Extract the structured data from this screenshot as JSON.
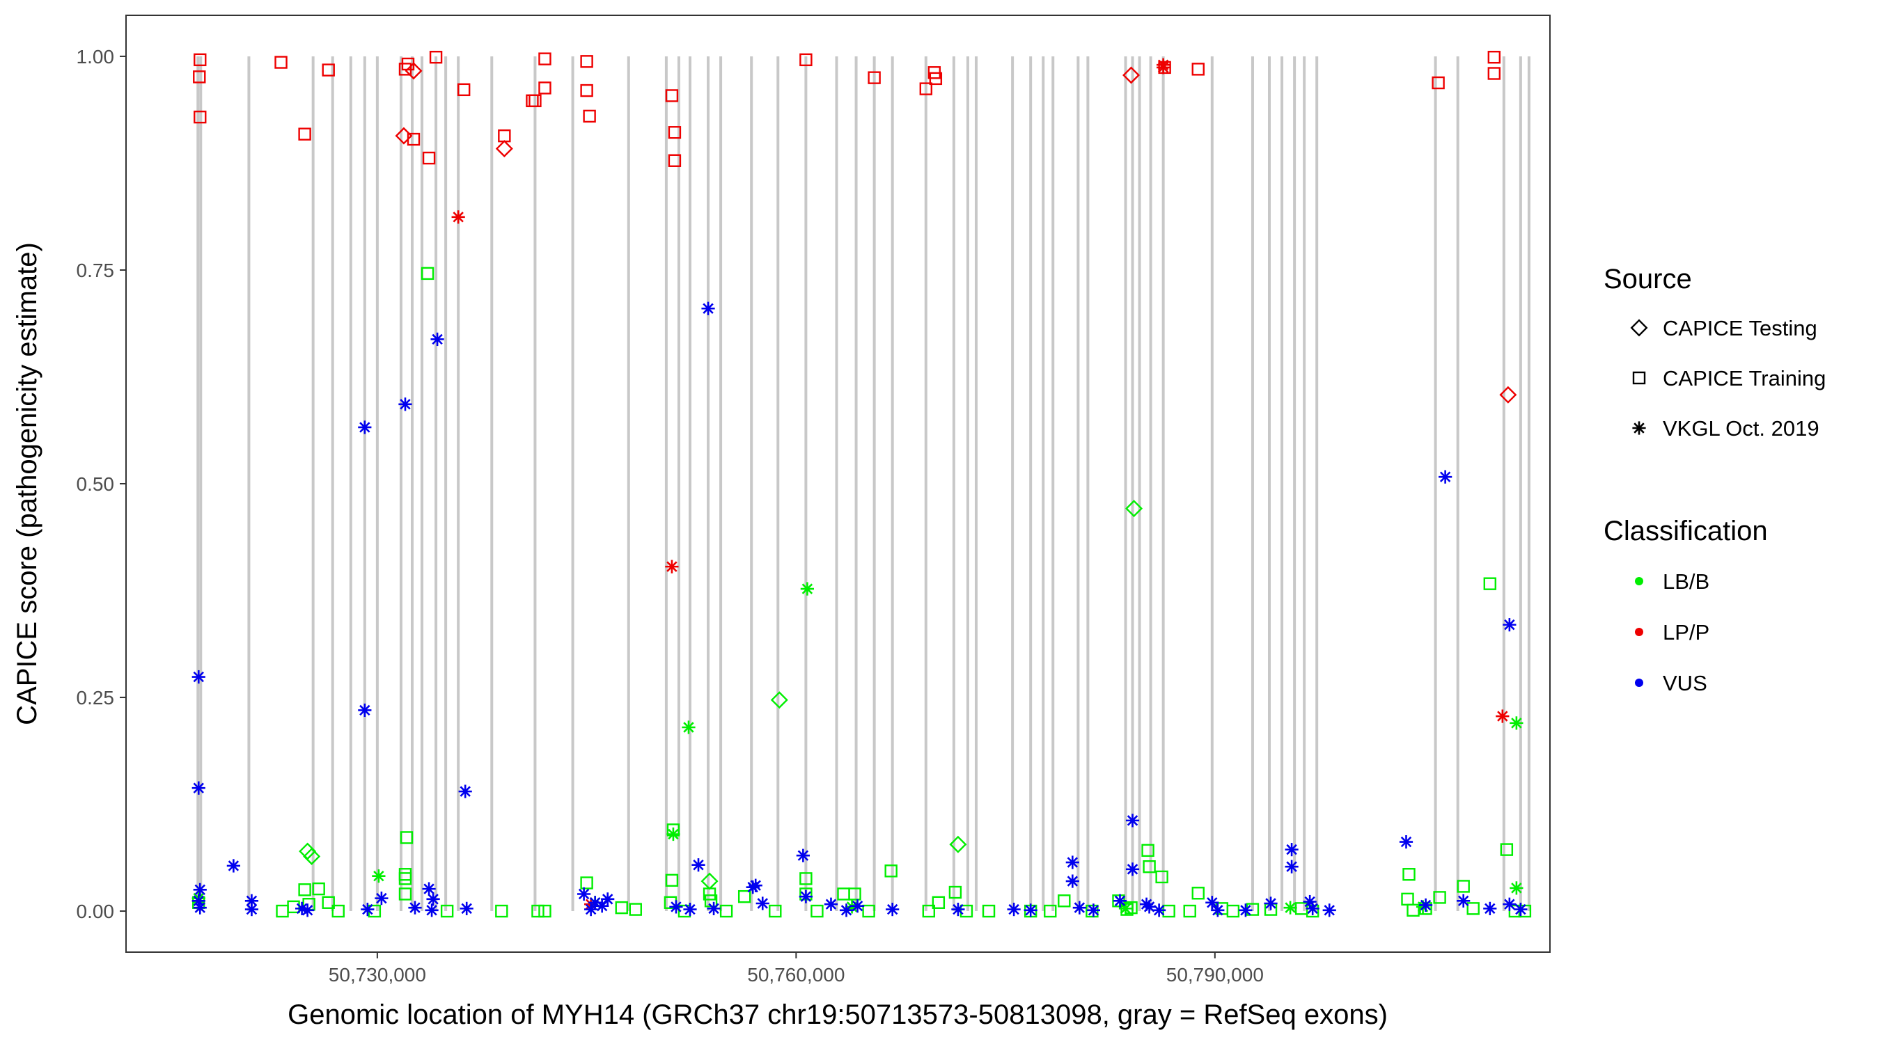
{
  "chart_data": {
    "type": "scatter",
    "xlabel": "Genomic location of MYH14 (GRCh37 chr19:50713573-50813098, gray = RefSeq exons)",
    "ylabel": "CAPICE score (pathogenicity estimate)",
    "xlim": [
      50712000,
      50814000
    ],
    "ylim": [
      -0.048,
      1.048
    ],
    "x_ticks": [
      {
        "value": 50730000,
        "label": "50,730,000"
      },
      {
        "value": 50760000,
        "label": "50,760,000"
      },
      {
        "value": 50790000,
        "label": "50,790,000"
      }
    ],
    "y_ticks": [
      {
        "value": 0.0,
        "label": "0.00"
      },
      {
        "value": 0.25,
        "label": "0.25"
      },
      {
        "value": 0.5,
        "label": "0.50"
      },
      {
        "value": 0.75,
        "label": "0.75"
      },
      {
        "value": 1.0,
        "label": "1.00"
      }
    ],
    "exon_positions": [
      50717150,
      50717350,
      50720800,
      50725400,
      50726800,
      50728100,
      50729100,
      50730000,
      50731700,
      50732500,
      50733200,
      50734200,
      50734900,
      50735800,
      50738200,
      50741300,
      50744000,
      50748000,
      50750700,
      50751600,
      50752400,
      50753700,
      50754600,
      50756800,
      50758700,
      50760700,
      50762900,
      50764300,
      50765600,
      50766900,
      50769300,
      50771300,
      50772300,
      50772900,
      50775500,
      50776800,
      50777700,
      50778400,
      50780200,
      50780900,
      50783600,
      50784100,
      50784600,
      50785400,
      50786300,
      50789800,
      50792700,
      50793900,
      50794800,
      50795700,
      50796400,
      50797300,
      50805800,
      50807400,
      50810700,
      50811900,
      50812500
    ],
    "legend": {
      "source_title": "Source",
      "source_items": [
        {
          "label": "CAPICE Testing",
          "shape": "diamond"
        },
        {
          "label": "CAPICE Training",
          "shape": "square"
        },
        {
          "label": "VKGL Oct. 2019",
          "shape": "asterisk"
        }
      ],
      "class_title": "Classification",
      "class_items": [
        {
          "label": "LB/B",
          "color": "#00ee00"
        },
        {
          "label": "LP/P",
          "color": "#ee0000"
        },
        {
          "label": "VUS",
          "color": "#0000ee"
        }
      ]
    },
    "colors": {
      "LB/B": "#00ee00",
      "LP/P": "#ee0000",
      "VUS": "#0000ee",
      "exon": "#c8c8c8"
    },
    "series": [
      {
        "name": "LP/P CAPICE Training",
        "classification": "LP/P",
        "source": "CAPICE Training",
        "points": [
          [
            50717300,
            0.996
          ],
          [
            50717250,
            0.976
          ],
          [
            50717300,
            0.929
          ],
          [
            50723100,
            0.993
          ],
          [
            50724800,
            0.909
          ],
          [
            50726500,
            0.984
          ],
          [
            50732000,
            0.985
          ],
          [
            50732200,
            0.991
          ],
          [
            50732600,
            0.903
          ],
          [
            50733700,
            0.881
          ],
          [
            50734200,
            0.999
          ],
          [
            50736200,
            0.961
          ],
          [
            50739100,
            0.907
          ],
          [
            50741100,
            0.948
          ],
          [
            50741300,
            0.948
          ],
          [
            50742000,
            0.997
          ],
          [
            50742000,
            0.963
          ],
          [
            50745000,
            0.994
          ],
          [
            50745000,
            0.96
          ],
          [
            50745200,
            0.93
          ],
          [
            50751100,
            0.954
          ],
          [
            50751300,
            0.911
          ],
          [
            50751300,
            0.878
          ],
          [
            50760700,
            0.996
          ],
          [
            50765600,
            0.975
          ],
          [
            50769300,
            0.962
          ],
          [
            50769900,
            0.981
          ],
          [
            50770000,
            0.974
          ],
          [
            50786400,
            0.987
          ],
          [
            50788800,
            0.985
          ],
          [
            50806000,
            0.969
          ],
          [
            50810000,
            0.999
          ],
          [
            50810000,
            0.98
          ]
        ]
      },
      {
        "name": "LP/P CAPICE Testing",
        "classification": "LP/P",
        "source": "CAPICE Testing",
        "points": [
          [
            50731900,
            0.907
          ],
          [
            50732600,
            0.983
          ],
          [
            50739100,
            0.892
          ],
          [
            50784000,
            0.978
          ],
          [
            50811000,
            0.604
          ]
        ]
      },
      {
        "name": "LP/P VKGL Oct. 2019",
        "classification": "LP/P",
        "source": "VKGL Oct. 2019",
        "points": [
          [
            50735800,
            0.812
          ],
          [
            50751100,
            0.403
          ],
          [
            50786300,
            0.99
          ],
          [
            50786300,
            0.987
          ],
          [
            50810600,
            0.228
          ],
          [
            50745300,
            0.008
          ]
        ]
      },
      {
        "name": "LB/B CAPICE Training",
        "classification": "LB/B",
        "source": "CAPICE Training",
        "points": [
          [
            50733600,
            0.746
          ],
          [
            50732100,
            0.086
          ],
          [
            50732000,
            0.043
          ],
          [
            50732000,
            0.038
          ],
          [
            50732000,
            0.02
          ],
          [
            50751200,
            0.095
          ],
          [
            50751100,
            0.036
          ],
          [
            50751000,
            0.01
          ],
          [
            50753800,
            0.02
          ],
          [
            50753900,
            0.012
          ],
          [
            50745000,
            0.033
          ],
          [
            50760700,
            0.038
          ],
          [
            50760700,
            0.02
          ],
          [
            50763400,
            0.02
          ],
          [
            50766800,
            0.047
          ],
          [
            50770200,
            0.01
          ],
          [
            50771400,
            0.022
          ],
          [
            50785200,
            0.071
          ],
          [
            50785300,
            0.052
          ],
          [
            50786200,
            0.04
          ],
          [
            50788800,
            0.021
          ],
          [
            50803900,
            0.043
          ],
          [
            50803800,
            0.014
          ],
          [
            50806100,
            0.016
          ],
          [
            50807800,
            0.029
          ],
          [
            50809700,
            0.383
          ],
          [
            50810900,
            0.072
          ],
          [
            50724800,
            0.025
          ],
          [
            50725800,
            0.026
          ],
          [
            50726500,
            0.01
          ],
          [
            50724000,
            0.005
          ],
          [
            50725100,
            0.008
          ],
          [
            50717200,
            0.01
          ],
          [
            50738900,
            0.0
          ],
          [
            50742000,
            0.0
          ],
          [
            50747500,
            0.004
          ],
          [
            50756300,
            0.017
          ],
          [
            50764200,
            0.02
          ],
          [
            50769500,
            0.0
          ],
          [
            50773800,
            0.0
          ],
          [
            50776800,
            0.0
          ],
          [
            50779200,
            0.012
          ],
          [
            50783100,
            0.012
          ],
          [
            50784000,
            0.004
          ],
          [
            50790500,
            0.003
          ],
          [
            50792700,
            0.002
          ],
          [
            50794000,
            0.002
          ],
          [
            50796200,
            0.003
          ],
          [
            50805100,
            0.003
          ],
          [
            50808500,
            0.003
          ],
          [
            50723200,
            0.0
          ],
          [
            50729800,
            0.0
          ],
          [
            50735000,
            0.0
          ],
          [
            50741500,
            0.0
          ],
          [
            50748500,
            0.002
          ],
          [
            50752000,
            0.0
          ],
          [
            50755000,
            0.0
          ],
          [
            50758500,
            0.0
          ],
          [
            50761500,
            0.0
          ],
          [
            50765200,
            0.0
          ],
          [
            50772200,
            0.0
          ],
          [
            50778200,
            0.0
          ],
          [
            50786700,
            0.0
          ],
          [
            50791300,
            0.0
          ],
          [
            50797000,
            0.0
          ],
          [
            50811500,
            0.0
          ],
          [
            50812200,
            0.0
          ],
          [
            50783700,
            0.002
          ],
          [
            50804200,
            0.001
          ],
          [
            50727200,
            0.0
          ],
          [
            50781200,
            0.0
          ],
          [
            50788200,
            0.0
          ]
        ]
      },
      {
        "name": "LB/B CAPICE Testing",
        "classification": "LB/B",
        "source": "CAPICE Testing",
        "points": [
          [
            50725000,
            0.07
          ],
          [
            50725300,
            0.064
          ],
          [
            50753800,
            0.035
          ],
          [
            50758800,
            0.247
          ],
          [
            50771600,
            0.078
          ],
          [
            50784200,
            0.471
          ]
        ]
      },
      {
        "name": "LB/B VKGL Oct. 2019",
        "classification": "LB/B",
        "source": "VKGL Oct. 2019",
        "points": [
          [
            50730100,
            0.041
          ],
          [
            50751200,
            0.09
          ],
          [
            50752300,
            0.215
          ],
          [
            50760800,
            0.377
          ],
          [
            50811600,
            0.22
          ],
          [
            50811600,
            0.027
          ],
          [
            50717200,
            0.015
          ],
          [
            50745600,
            0.01
          ],
          [
            50764000,
            0.005
          ],
          [
            50783600,
            0.003
          ],
          [
            50795400,
            0.004
          ],
          [
            50804900,
            0.005
          ]
        ]
      },
      {
        "name": "VUS VKGL Oct. 2019",
        "classification": "VUS",
        "source": "VKGL Oct. 2019",
        "points": [
          [
            50717200,
            0.274
          ],
          [
            50717200,
            0.144
          ],
          [
            50717300,
            0.025
          ],
          [
            50717200,
            0.012
          ],
          [
            50717300,
            0.004
          ],
          [
            50719700,
            0.053
          ],
          [
            50721000,
            0.012
          ],
          [
            50721000,
            0.002
          ],
          [
            50724600,
            0.003
          ],
          [
            50725000,
            0.001
          ],
          [
            50729100,
            0.566
          ],
          [
            50729100,
            0.235
          ],
          [
            50729300,
            0.002
          ],
          [
            50730300,
            0.015
          ],
          [
            50732000,
            0.593
          ],
          [
            50732700,
            0.004
          ],
          [
            50733700,
            0.026
          ],
          [
            50734000,
            0.014
          ],
          [
            50734300,
            0.669
          ],
          [
            50736300,
            0.14
          ],
          [
            50736400,
            0.003
          ],
          [
            50744800,
            0.02
          ],
          [
            50745600,
            0.01
          ],
          [
            50746100,
            0.006
          ],
          [
            50746500,
            0.014
          ],
          [
            50751400,
            0.005
          ],
          [
            50753000,
            0.054
          ],
          [
            50753700,
            0.705
          ],
          [
            50754100,
            0.003
          ],
          [
            50756900,
            0.028
          ],
          [
            50757100,
            0.03
          ],
          [
            50757600,
            0.009
          ],
          [
            50760500,
            0.065
          ],
          [
            50760700,
            0.017
          ],
          [
            50762500,
            0.008
          ],
          [
            50764400,
            0.006
          ],
          [
            50766900,
            0.002
          ],
          [
            50771600,
            0.002
          ],
          [
            50775600,
            0.002
          ],
          [
            50776800,
            0.001
          ],
          [
            50779800,
            0.057
          ],
          [
            50779800,
            0.035
          ],
          [
            50780300,
            0.004
          ],
          [
            50781300,
            0.001
          ],
          [
            50783200,
            0.012
          ],
          [
            50784100,
            0.106
          ],
          [
            50784100,
            0.049
          ],
          [
            50785100,
            0.008
          ],
          [
            50785300,
            0.005
          ],
          [
            50789800,
            0.01
          ],
          [
            50790200,
            0.001
          ],
          [
            50794000,
            0.009
          ],
          [
            50795500,
            0.072
          ],
          [
            50795500,
            0.052
          ],
          [
            50796800,
            0.011
          ],
          [
            50797000,
            0.003
          ],
          [
            50803700,
            0.081
          ],
          [
            50805100,
            0.007
          ],
          [
            50806500,
            0.508
          ],
          [
            50807800,
            0.012
          ],
          [
            50809700,
            0.003
          ],
          [
            50811100,
            0.335
          ],
          [
            50811100,
            0.008
          ],
          [
            50811900,
            0.002
          ],
          [
            50733900,
            0.001
          ],
          [
            50745300,
            0.002
          ],
          [
            50752400,
            0.002
          ],
          [
            50763600,
            0.001
          ],
          [
            50786000,
            0.001
          ],
          [
            50792200,
            0.001
          ],
          [
            50798200,
            0.001
          ]
        ]
      }
    ]
  }
}
